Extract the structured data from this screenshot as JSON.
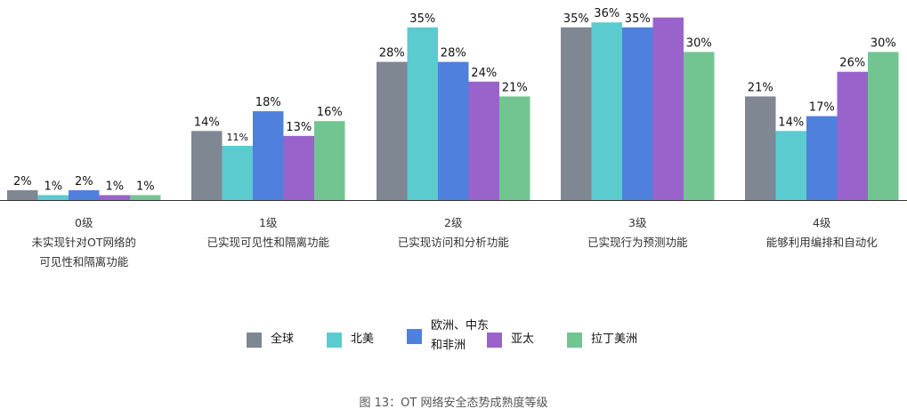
{
  "chart_data": {
    "type": "bar",
    "categories": [
      {
        "level": "0级",
        "desc": "未实现针对OT网络的可见性和隔离功能"
      },
      {
        "level": "1级",
        "desc": "已实现可见性和隔离功能"
      },
      {
        "level": "2级",
        "desc": "已实现访问和分析功能"
      },
      {
        "level": "3级",
        "desc": "已实现行为预测功能"
      },
      {
        "level": "4级",
        "desc": "能够利用编排和自动化"
      }
    ],
    "series": [
      {
        "name": "全球",
        "color": "#7f8793",
        "values": [
          2,
          14,
          28,
          35,
          21
        ]
      },
      {
        "name": "北美",
        "color": "#5bcbd0",
        "values": [
          1,
          11,
          35,
          36,
          14
        ]
      },
      {
        "name": "欧洲、中东和非洲",
        "color": "#4f80de",
        "values": [
          2,
          18,
          28,
          35,
          17
        ]
      },
      {
        "name": "亚太",
        "color": "#9a63cc",
        "values": [
          1,
          13,
          24,
          37,
          26
        ]
      },
      {
        "name": "拉丁美洲",
        "color": "#72c591",
        "values": [
          1,
          16,
          21,
          30,
          30
        ]
      }
    ],
    "data_labels": [
      [
        "2%",
        "1%",
        "2%",
        "1%",
        "1%"
      ],
      [
        "14%",
        "11%",
        "18%",
        "13%",
        "16%"
      ],
      [
        "28%",
        "35%",
        "28%",
        "24%",
        "21%"
      ],
      [
        "35%",
        "36%",
        "35%",
        "",
        "30%"
      ],
      [
        "21%",
        "14%",
        "17%",
        "26%",
        "30%"
      ]
    ],
    "ylim": [
      0,
      38
    ],
    "title": "图 13：OT 网络安全态势成熟度等级",
    "legend_position": "bottom"
  }
}
